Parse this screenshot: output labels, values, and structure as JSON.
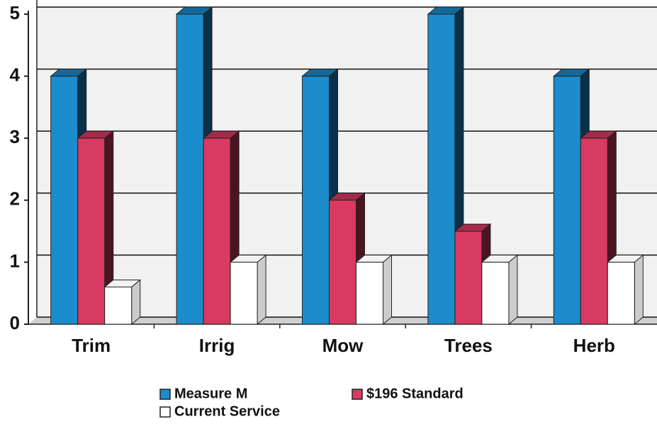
{
  "chart_data": {
    "type": "bar3d",
    "categories": [
      "Trim",
      "Irrig",
      "Mow",
      "Trees",
      "Herb"
    ],
    "series": [
      {
        "name": "Measure M",
        "color": "#1b8ccc",
        "values": [
          4,
          5,
          4,
          5,
          4
        ]
      },
      {
        "name": "$196 Standard",
        "color": "#d93a62",
        "values": [
          3,
          3,
          2,
          1.5,
          3
        ]
      },
      {
        "name": "Current Service",
        "color": "#ffffff",
        "values": [
          0.6,
          1,
          1,
          1,
          1
        ]
      }
    ],
    "ylim": [
      0,
      5
    ],
    "yticks": [
      0,
      1,
      2,
      3,
      4,
      5
    ],
    "grid": true,
    "legend": "bottom"
  }
}
